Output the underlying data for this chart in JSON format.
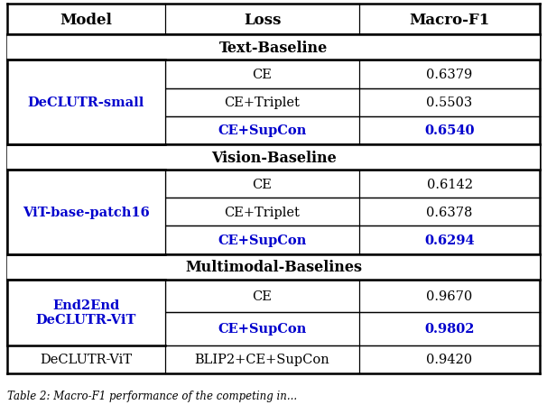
{
  "blue_color": "#0000CD",
  "black_color": "#000000",
  "bg_color": "#FFFFFF",
  "header_row": [
    "Model",
    "Loss",
    "Macro-F1"
  ],
  "rows": [
    {
      "model": "DeCLUTR-small",
      "model_blue": true,
      "model_bold": true,
      "model_span": 3,
      "entries": [
        {
          "loss": "CE",
          "loss_blue": false,
          "loss_bold": false,
          "f1": "0.6379",
          "f1_blue": false,
          "f1_bold": false
        },
        {
          "loss": "CE+Triplet",
          "loss_blue": false,
          "loss_bold": false,
          "f1": "0.5503",
          "f1_blue": false,
          "f1_bold": false
        },
        {
          "loss": "CE+SupCon",
          "loss_blue": true,
          "loss_bold": true,
          "f1": "0.6540",
          "f1_blue": true,
          "f1_bold": true
        }
      ]
    },
    {
      "model": "ViT-base-patch16",
      "model_blue": true,
      "model_bold": true,
      "model_span": 3,
      "entries": [
        {
          "loss": "CE",
          "loss_blue": false,
          "loss_bold": false,
          "f1": "0.6142",
          "f1_blue": false,
          "f1_bold": false
        },
        {
          "loss": "CE+Triplet",
          "loss_blue": false,
          "loss_bold": false,
          "f1": "0.6378",
          "f1_blue": false,
          "f1_bold": false
        },
        {
          "loss": "CE+SupCon",
          "loss_blue": true,
          "loss_bold": true,
          "f1": "0.6294",
          "f1_blue": true,
          "f1_bold": true
        }
      ]
    },
    {
      "model": "End2End\nDeCLUTR-ViT",
      "model_blue": true,
      "model_bold": true,
      "model_span": 2,
      "entries": [
        {
          "loss": "CE",
          "loss_blue": false,
          "loss_bold": false,
          "f1": "0.9670",
          "f1_blue": false,
          "f1_bold": false
        },
        {
          "loss": "CE+SupCon",
          "loss_blue": true,
          "loss_bold": true,
          "f1": "0.9802",
          "f1_blue": true,
          "f1_bold": true
        }
      ]
    },
    {
      "model": "DeCLUTR-ViT",
      "model_blue": false,
      "model_bold": false,
      "model_span": 1,
      "entries": [
        {
          "loss": "BLIP2+CE+SupCon",
          "loss_blue": false,
          "loss_bold": false,
          "f1": "0.9420",
          "f1_blue": false,
          "f1_bold": false
        }
      ]
    }
  ],
  "sections": [
    {
      "label": "Text-Baseline",
      "after_row": -1
    },
    {
      "label": "Vision-Baseline",
      "after_row": 0
    },
    {
      "label": "Multimodal-Baselines",
      "after_row": 1
    }
  ],
  "caption": "Table 2: Macro-F1 performance of the competing in..."
}
